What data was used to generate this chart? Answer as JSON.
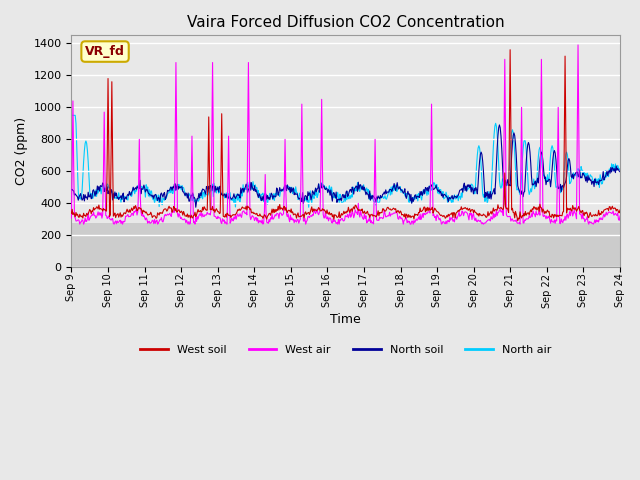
{
  "title": "Vaira Forced Diffusion CO2 Concentration",
  "xlabel": "Time",
  "ylabel": "CO2 (ppm)",
  "ylim": [
    0,
    1450
  ],
  "yticks": [
    0,
    200,
    400,
    600,
    800,
    1000,
    1200,
    1400
  ],
  "xtick_labels": [
    "Sep 9",
    "Sep 10",
    "Sep 11",
    "Sep 12",
    "Sep 13",
    "Sep 14",
    "Sep 15",
    "Sep 16",
    "Sep 17",
    "Sep 18",
    "Sep 19",
    "Sep 20",
    "Sep 21",
    "Sep 22",
    "Sep 23",
    "Sep 24"
  ],
  "legend_labels": [
    "West soil",
    "West air",
    "North soil",
    "North air"
  ],
  "legend_colors": [
    "#cc0000",
    "#ff00ff",
    "#000099",
    "#00ccff"
  ],
  "annotation_text": "VR_fd",
  "annotation_color": "#8b0000",
  "annotation_bg": "#ffffcc",
  "annotation_edge": "#ccaa00",
  "bg_color": "#e8e8e8",
  "plot_bg_dark": "#d4d4d4",
  "plot_bg_light": "#f0f0f0",
  "grid_color": "#ffffff",
  "title_fontsize": 11,
  "axis_label_fontsize": 9,
  "tick_fontsize": 7
}
